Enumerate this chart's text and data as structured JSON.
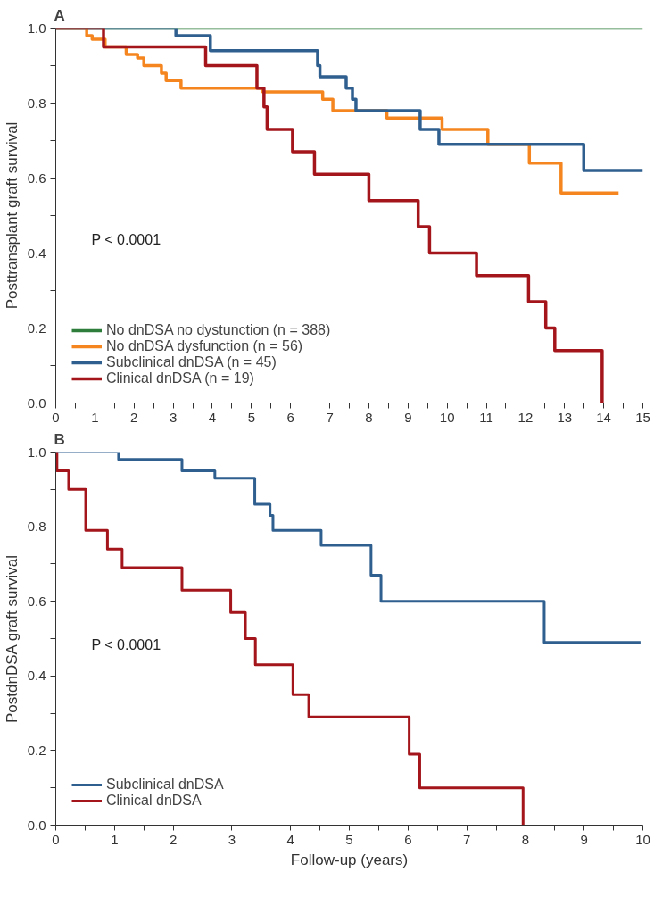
{
  "chart_data": [
    {
      "type": "step",
      "title": "A",
      "ylabel": "Posttransplant graft survival",
      "xlim": [
        0,
        15
      ],
      "ylim": [
        0,
        1
      ],
      "xticks": [
        0,
        {
          "value": 0.5,
          "label": null
        },
        1,
        {
          "value": 1.5,
          "label": null
        },
        2,
        {
          "value": 2.5,
          "label": null
        },
        3,
        {
          "value": 3.5,
          "label": null
        },
        4,
        {
          "value": 4.5,
          "label": null
        },
        5,
        {
          "value": 5.5,
          "label": null
        },
        6,
        {
          "value": 6.5,
          "label": null
        },
        7,
        {
          "value": 7.5,
          "label": null
        },
        8,
        {
          "value": 8.5,
          "label": null
        },
        9,
        {
          "value": 9.5,
          "label": null
        },
        10,
        {
          "value": 10.5,
          "label": null
        },
        11,
        {
          "value": 11.5,
          "label": null
        },
        12,
        {
          "value": 12.5,
          "label": null
        },
        13,
        {
          "value": 13.5,
          "label": null
        },
        14,
        {
          "value": 14.5,
          "label": null
        },
        15
      ],
      "yticks": [
        {
          "value": 0,
          "label": "0.0"
        },
        {
          "value": 0.1,
          "label": null
        },
        0.2,
        {
          "value": 0.3,
          "label": null
        },
        0.4,
        {
          "value": 0.5,
          "label": null
        },
        0.6,
        {
          "value": 0.7,
          "label": null
        },
        0.8,
        {
          "value": 0.9,
          "label": null
        },
        {
          "value": 1,
          "label": "1.0"
        }
      ],
      "legend": "bottom left",
      "annotations": [
        "P < 0.0001"
      ],
      "series": [
        {
          "name": "No dnDSA no dystunction (n = 388)",
          "color": "#2e7d3a",
          "x": [
            0,
            15
          ],
          "values": [
            1,
            1
          ]
        },
        {
          "name": "No dnDSA dysfunction (n = 56)",
          "color": "#f5861f",
          "x": [
            0,
            0.79,
            0.93,
            1.26,
            1.8,
            2.09,
            2.25,
            2.7,
            2.82,
            3.2,
            5.29,
            6.82,
            7.08,
            8.46,
            9.87,
            11.04,
            12.1,
            12.91,
            14.38
          ],
          "values": [
            1,
            0.98,
            0.97,
            0.95,
            0.93,
            0.92,
            0.9,
            0.88,
            0.86,
            0.84,
            0.83,
            0.81,
            0.78,
            0.76,
            0.73,
            0.69,
            0.64,
            0.56,
            0.56
          ]
        },
        {
          "name": "Subclinical dnDSA (n = 45)",
          "color": "#2f5f8f",
          "x": [
            0,
            3.07,
            3.95,
            6.69,
            6.75,
            7.42,
            7.58,
            7.67,
            9.31,
            9.79,
            13.49,
            15
          ],
          "values": [
            1,
            0.98,
            0.94,
            0.9,
            0.87,
            0.84,
            0.81,
            0.78,
            0.73,
            0.69,
            0.62,
            0.62
          ]
        },
        {
          "name": "Clinical dnDSA (n = 19)",
          "color": "#a3151b",
          "x": [
            0,
            1.22,
            3.83,
            5.14,
            5.32,
            5.4,
            6.05,
            6.61,
            8.0,
            9.26,
            9.55,
            10.75,
            12.08,
            12.52,
            12.75,
            13.96
          ],
          "values": [
            1,
            0.95,
            0.9,
            0.84,
            0.79,
            0.73,
            0.67,
            0.61,
            0.54,
            0.47,
            0.4,
            0.34,
            0.27,
            0.2,
            0.14,
            0
          ]
        }
      ]
    },
    {
      "type": "step",
      "title": "B",
      "ylabel": "PostdnDSA graft survival",
      "xlabel": "Follow-up (years)",
      "xlim": [
        0,
        10
      ],
      "ylim": [
        0,
        1
      ],
      "xticks": [
        0,
        {
          "value": 0.5,
          "label": null
        },
        1,
        {
          "value": 1.5,
          "label": null
        },
        2,
        {
          "value": 2.5,
          "label": null
        },
        3,
        {
          "value": 3.5,
          "label": null
        },
        4,
        {
          "value": 4.5,
          "label": null
        },
        5,
        {
          "value": 5.5,
          "label": null
        },
        6,
        {
          "value": 6.5,
          "label": null
        },
        7,
        {
          "value": 7.5,
          "label": null
        },
        8,
        {
          "value": 8.5,
          "label": null
        },
        9,
        {
          "value": 9.5,
          "label": null
        },
        10
      ],
      "yticks": [
        {
          "value": 0,
          "label": "0.0"
        },
        {
          "value": 0.1,
          "label": null
        },
        0.2,
        {
          "value": 0.3,
          "label": null
        },
        0.4,
        {
          "value": 0.5,
          "label": null
        },
        0.6,
        {
          "value": 0.7,
          "label": null
        },
        0.8,
        {
          "value": 0.9,
          "label": null
        },
        {
          "value": 1,
          "label": "1.0"
        }
      ],
      "legend": "bottom left",
      "annotations": [
        "P < 0.0001"
      ],
      "series": [
        {
          "name": "Subclinical dnDSA",
          "color": "#2f5f8f",
          "x": [
            0,
            1.07,
            2.15,
            2.71,
            3.39,
            3.65,
            3.7,
            4.52,
            5.37,
            5.54,
            8.32,
            9.96
          ],
          "values": [
            1,
            0.98,
            0.95,
            0.93,
            0.86,
            0.83,
            0.79,
            0.75,
            0.67,
            0.6,
            0.49,
            0.49
          ]
        },
        {
          "name": "Clinical dnDSA",
          "color": "#a3151b",
          "x": [
            0,
            0.02,
            0.22,
            0.51,
            0.88,
            1.13,
            2.15,
            2.98,
            3.23,
            3.4,
            4.04,
            4.31,
            6.02,
            6.2,
            7.96
          ],
          "values": [
            1,
            0.95,
            0.9,
            0.79,
            0.74,
            0.69,
            0.63,
            0.57,
            0.5,
            0.43,
            0.35,
            0.29,
            0.19,
            0.1,
            0
          ]
        }
      ]
    }
  ]
}
